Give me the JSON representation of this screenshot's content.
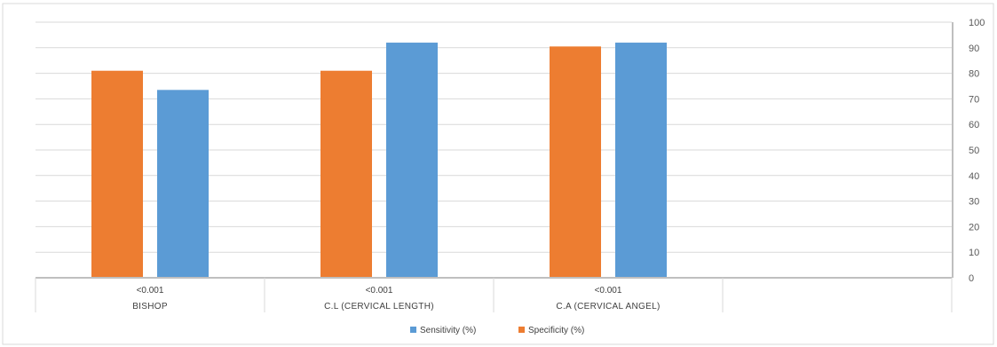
{
  "chart_data": {
    "type": "bar",
    "categories": [
      "BISHOP",
      "C.L (CERVICAL LENGTH)",
      "C.A (CERVICAL ANGEL)",
      ""
    ],
    "p_values": [
      "<0.001",
      "<0.001",
      "<0.001",
      ""
    ],
    "series": [
      {
        "name": "Specificity (%)",
        "color": "#ED7D31",
        "values": [
          81,
          81,
          90.5,
          null
        ]
      },
      {
        "name": "Sensitivity (%)",
        "color": "#5B9BD5",
        "values": [
          73.5,
          92,
          92,
          null
        ]
      }
    ],
    "legend_order": [
      "Sensitivity (%)",
      "Specificity (%)"
    ],
    "ylim": [
      0,
      100
    ],
    "yticks": [
      0,
      10,
      20,
      30,
      40,
      50,
      60,
      70,
      80,
      90,
      100
    ],
    "y_axis_side": "right",
    "grid": true,
    "legend_position": "bottom"
  }
}
